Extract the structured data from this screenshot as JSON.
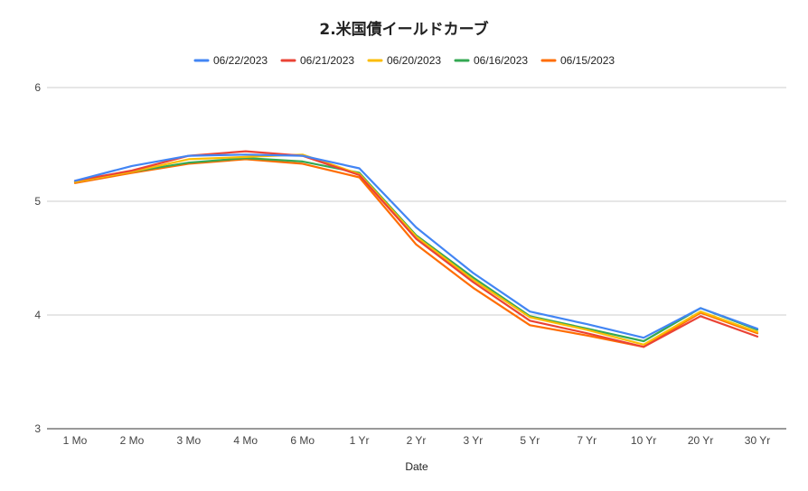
{
  "chart_data": {
    "type": "line",
    "title": "2.米国債イールドカーブ",
    "xlabel": "Date",
    "ylabel": "",
    "categories": [
      "1 Mo",
      "2 Mo",
      "3 Mo",
      "4 Mo",
      "6 Mo",
      "1 Yr",
      "2 Yr",
      "3 Yr",
      "5 Yr",
      "7 Yr",
      "10 Yr",
      "20 Yr",
      "30 Yr"
    ],
    "ylim": [
      3,
      6
    ],
    "yticks": [
      "3",
      "4",
      "5",
      "6"
    ],
    "grid": true,
    "legend_position": "top",
    "series": [
      {
        "name": "06/22/2023",
        "color": "#4285f4",
        "values": [
          5.18,
          5.31,
          5.4,
          5.41,
          5.4,
          5.29,
          4.77,
          4.37,
          4.03,
          3.92,
          3.8,
          4.06,
          3.88
        ]
      },
      {
        "name": "06/21/2023",
        "color": "#ea4335",
        "values": [
          5.18,
          5.27,
          5.4,
          5.44,
          5.4,
          5.23,
          4.67,
          4.29,
          3.95,
          3.84,
          3.72,
          3.99,
          3.81
        ]
      },
      {
        "name": "06/20/2023",
        "color": "#fbbc04",
        "values": [
          5.17,
          5.26,
          5.37,
          5.39,
          5.41,
          5.24,
          4.69,
          4.31,
          3.98,
          3.87,
          3.74,
          4.03,
          3.85
        ]
      },
      {
        "name": "06/16/2023",
        "color": "#34a853",
        "values": [
          5.17,
          5.26,
          5.34,
          5.38,
          5.35,
          5.25,
          4.7,
          4.33,
          3.99,
          3.88,
          3.77,
          4.06,
          3.87
        ]
      },
      {
        "name": "06/15/2023",
        "color": "#ff6d01",
        "values": [
          5.16,
          5.25,
          5.33,
          5.37,
          5.33,
          5.21,
          4.62,
          4.24,
          3.91,
          3.82,
          3.72,
          4.02,
          3.84
        ]
      }
    ]
  }
}
